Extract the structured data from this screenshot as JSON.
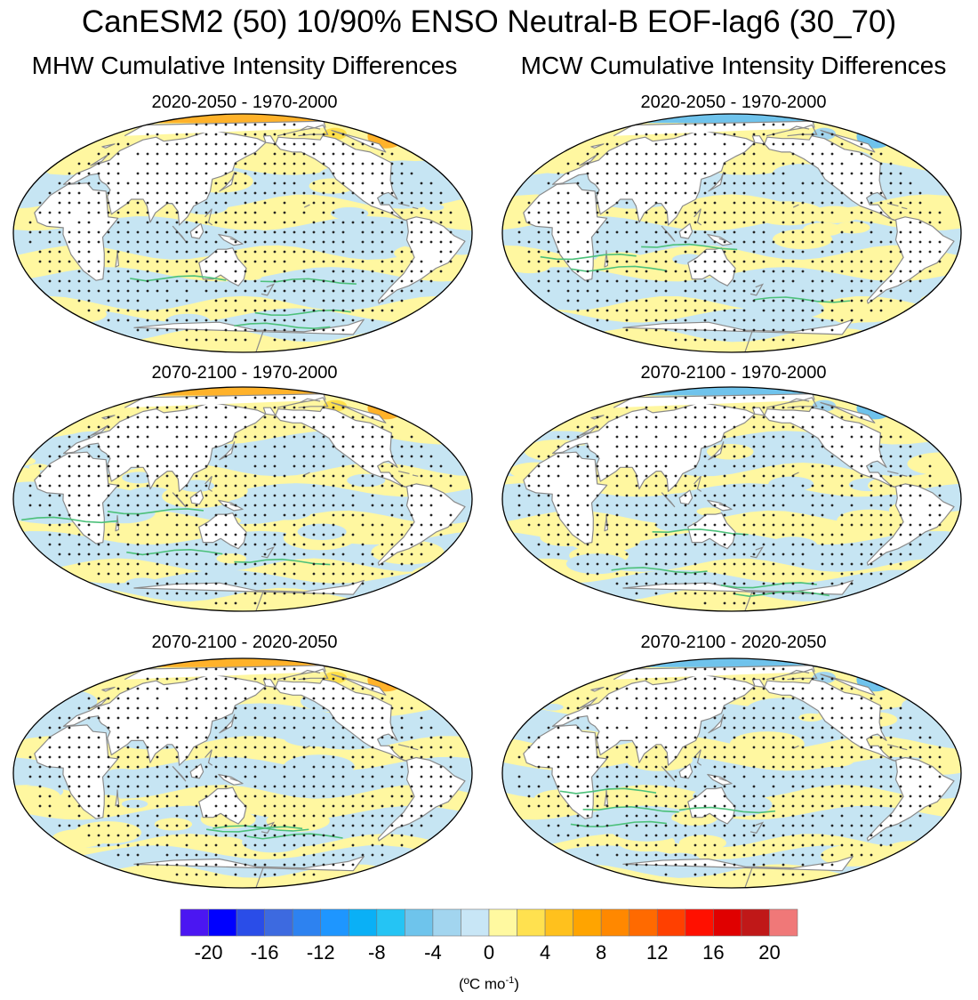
{
  "title": "CanESM2 (50) 10/90% ENSO Neutral-B EOF-lag6 (30_70)",
  "columns": [
    "MHW Cumulative Intensity Differences",
    "MCW Cumulative Intensity Differences"
  ],
  "panels": [
    {
      "variable": "MHW",
      "period": "2020-2050 - 1970-2000"
    },
    {
      "variable": "MCW",
      "period": "2020-2050 - 1970-2000"
    },
    {
      "variable": "MHW",
      "period": "2070-2100 - 1970-2000"
    },
    {
      "variable": "MCW",
      "period": "2070-2100 - 1970-2000"
    },
    {
      "variable": "MHW",
      "period": "2070-2100 - 2020-2050"
    },
    {
      "variable": "MCW",
      "period": "2070-2100 - 2020-2050"
    }
  ],
  "chart_data": {
    "type": "heatmap",
    "projection": "Robinson (Pacific-centred), global ocean field",
    "stippling": "dots mark statistically significant differences",
    "colorbar": {
      "levels": [
        -22,
        -20,
        -18,
        -16,
        -14,
        -12,
        -10,
        -8,
        -6,
        -4,
        -2,
        0,
        2,
        4,
        6,
        8,
        10,
        12,
        14,
        16,
        18,
        20,
        22
      ],
      "colors": [
        "#4b16f2",
        "#0000ff",
        "#2a4de8",
        "#3d6ae0",
        "#2d82f0",
        "#1e96ff",
        "#0ab0f6",
        "#25c4f4",
        "#6ec4ec",
        "#a2d5ef",
        "#c8e6f6",
        "#fff9a0",
        "#ffe14f",
        "#ffc11d",
        "#ffa400",
        "#ff8800",
        "#ff6a00",
        "#ff4000",
        "#ff1000",
        "#e00000",
        "#c01818",
        "#f07878"
      ],
      "tick_labels": [
        "-20",
        "-16",
        "-12",
        "-8",
        "-4",
        "0",
        "4",
        "8",
        "12",
        "16",
        "20"
      ],
      "tick_values": [
        -20,
        -16,
        -12,
        -8,
        -4,
        0,
        4,
        8,
        12,
        16,
        20
      ],
      "units": "(ºC mo",
      "units_exponent": "-1",
      "units_close": ")"
    }
  }
}
